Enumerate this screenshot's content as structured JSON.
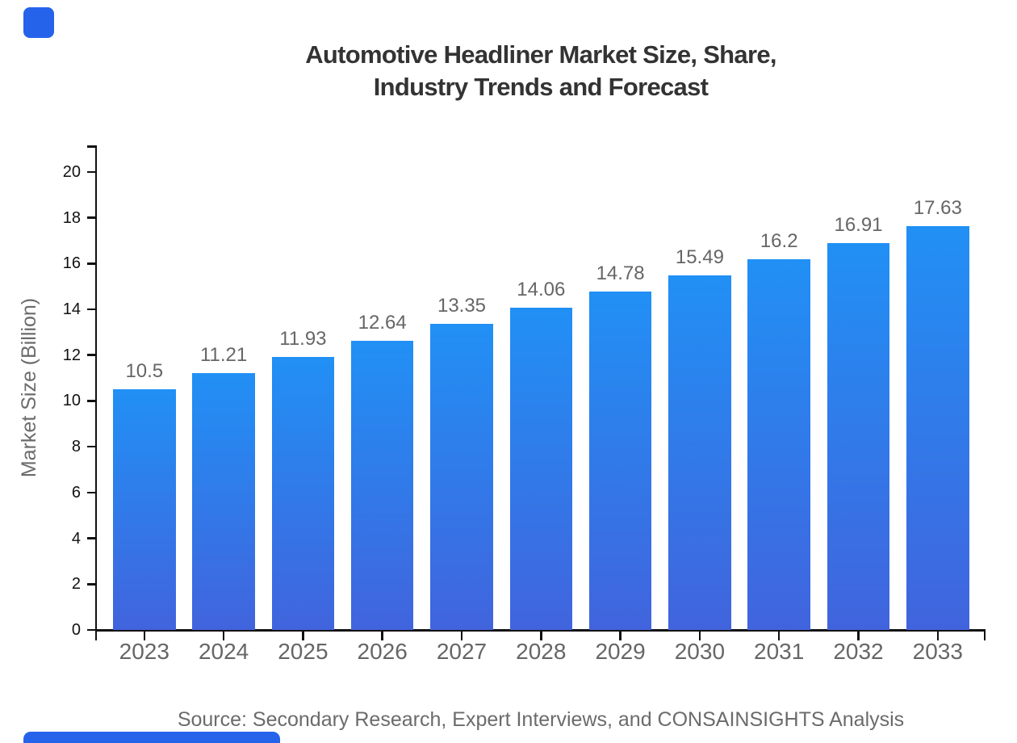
{
  "brand": {
    "logo_color": "#2563eb",
    "footer_color": "#2563eb"
  },
  "title": {
    "line1": "Automotive Headliner Market Size, Share,",
    "line2": "Industry Trends and Forecast",
    "color": "#333333"
  },
  "source": {
    "text": "Source: Secondary Research, Expert Interviews, and CONSAINSIGHTS Analysis"
  },
  "chart_data": {
    "type": "bar",
    "title": "Automotive Headliner Market Size, Share, Industry Trends and Forecast",
    "categories": [
      "2023",
      "2024",
      "2025",
      "2026",
      "2027",
      "2028",
      "2029",
      "2030",
      "2031",
      "2032",
      "2033"
    ],
    "values": [
      10.5,
      11.21,
      11.93,
      12.64,
      13.35,
      14.06,
      14.78,
      15.49,
      16.2,
      16.91,
      17.63
    ],
    "bar_labels": [
      "10.5",
      "11.21",
      "11.93",
      "12.64",
      "13.35",
      "14.06",
      "14.78",
      "15.49",
      "16.2",
      "16.91",
      "17.63"
    ],
    "xlabel": "",
    "ylabel": "Market Size (Billion)",
    "ylim": [
      0,
      21.16
    ],
    "yticks": [
      0,
      2,
      4,
      6,
      8,
      10,
      12,
      14,
      16,
      18,
      20
    ],
    "grid": false,
    "legend": false,
    "bar_color_top": "#2190f5",
    "bar_color_bottom": "#4164dd",
    "value_label_color": "#666666",
    "xtick_label_color": "#666666",
    "ytick_label_color": "#111111",
    "axis_color": "#111111",
    "axis_title_color": "#6b6b6b"
  }
}
